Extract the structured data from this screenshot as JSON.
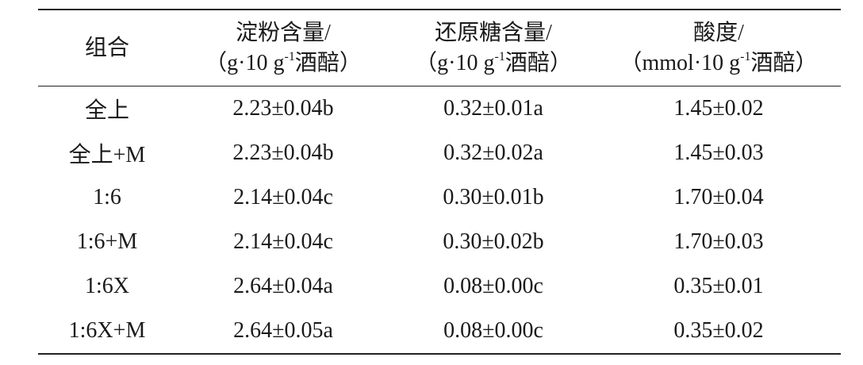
{
  "table": {
    "header": [
      {
        "title": "组合"
      },
      {
        "title": "淀粉含量/",
        "unit": {
          "before": "（g·10 g",
          "sup": "-1",
          "after": "酒醅）"
        }
      },
      {
        "title": "还原糖含量/",
        "unit": {
          "before": "（g·10 g",
          "sup": "-1",
          "after": "酒醅）"
        }
      },
      {
        "title": "酸度/",
        "unit": {
          "before": "（mmol·10 g",
          "sup": "-1",
          "after": "酒醅）"
        }
      }
    ],
    "rows": [
      [
        "全上",
        "2.23±0.04b",
        "0.32±0.01a",
        "1.45±0.02"
      ],
      [
        "全上+M",
        "2.23±0.04b",
        "0.32±0.02a",
        "1.45±0.03"
      ],
      [
        "1:6",
        "2.14±0.04c",
        "0.30±0.01b",
        "1.70±0.04"
      ],
      [
        "1:6+M",
        "2.14±0.04c",
        "0.30±0.02b",
        "1.70±0.03"
      ],
      [
        "1:6X",
        "2.64±0.04a",
        "0.08±0.00c",
        "0.35±0.01"
      ],
      [
        "1:6X+M",
        "2.64±0.05a",
        "0.08±0.00c",
        "0.35±0.02"
      ]
    ]
  }
}
